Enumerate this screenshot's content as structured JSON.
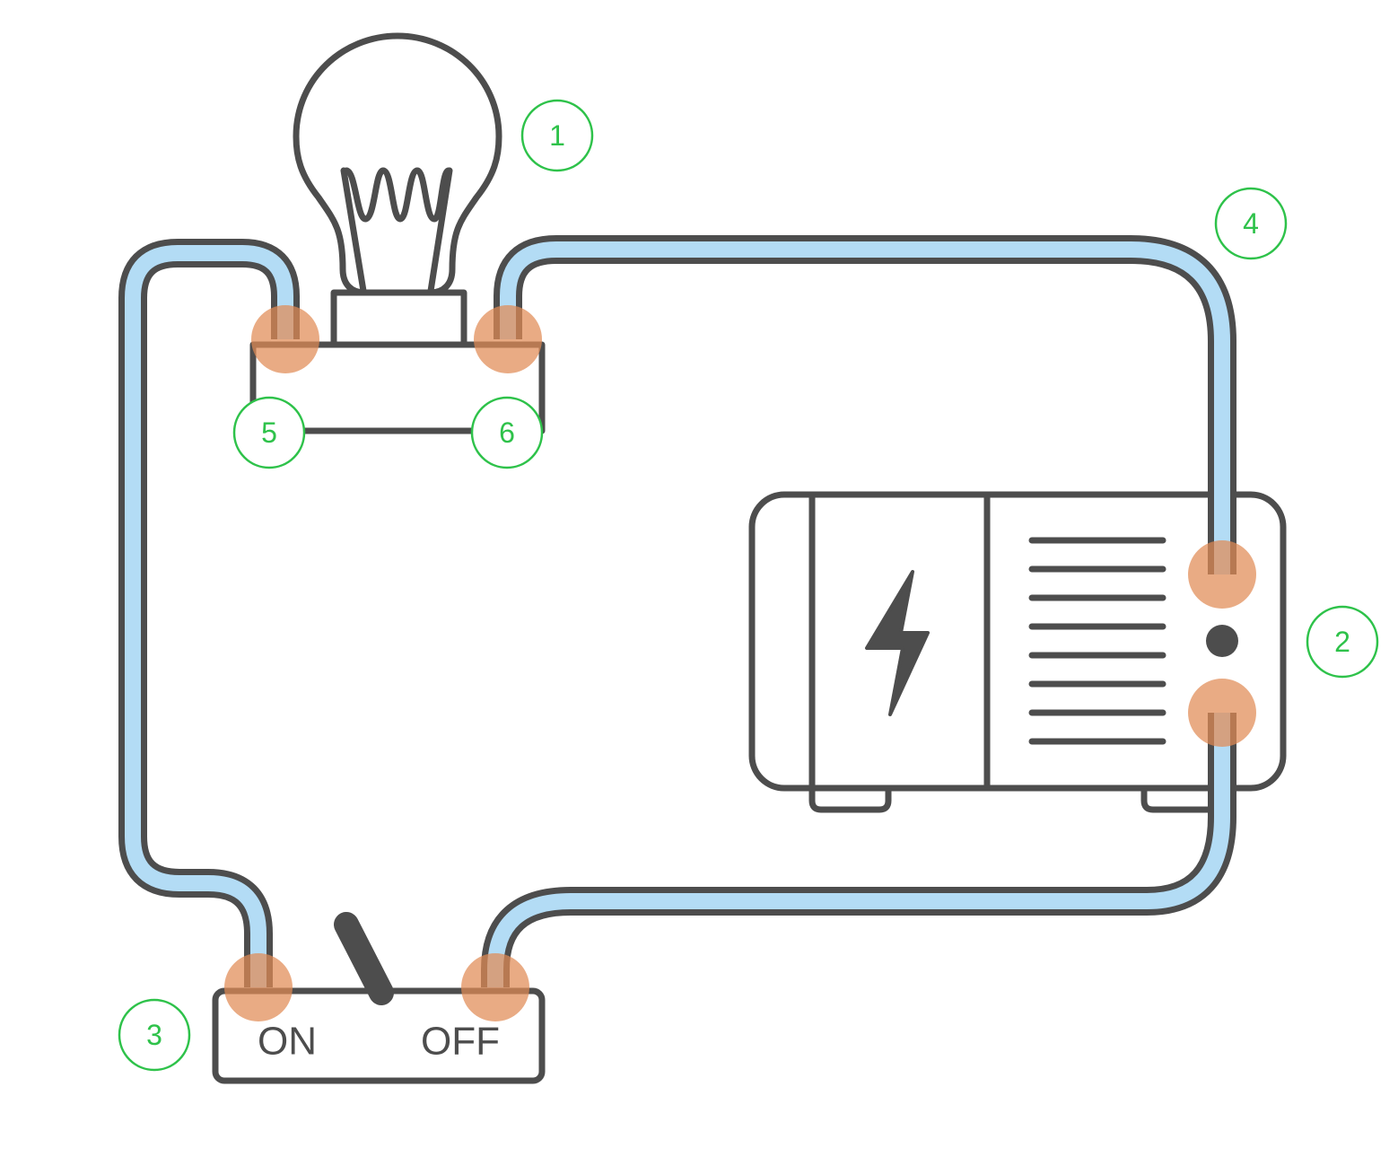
{
  "callouts": [
    "1",
    "2",
    "3",
    "4",
    "5",
    "6"
  ],
  "switch": {
    "on_label": "ON",
    "off_label": "OFF"
  },
  "colors": {
    "wire": "#b3dcf5",
    "outline": "#4d4d4d",
    "connection_node": "#e08a55",
    "callout": "#2ec24a"
  },
  "icons": [
    "light-bulb-icon",
    "lightning-bolt-icon",
    "battery-icon",
    "toggle-switch-icon"
  ]
}
